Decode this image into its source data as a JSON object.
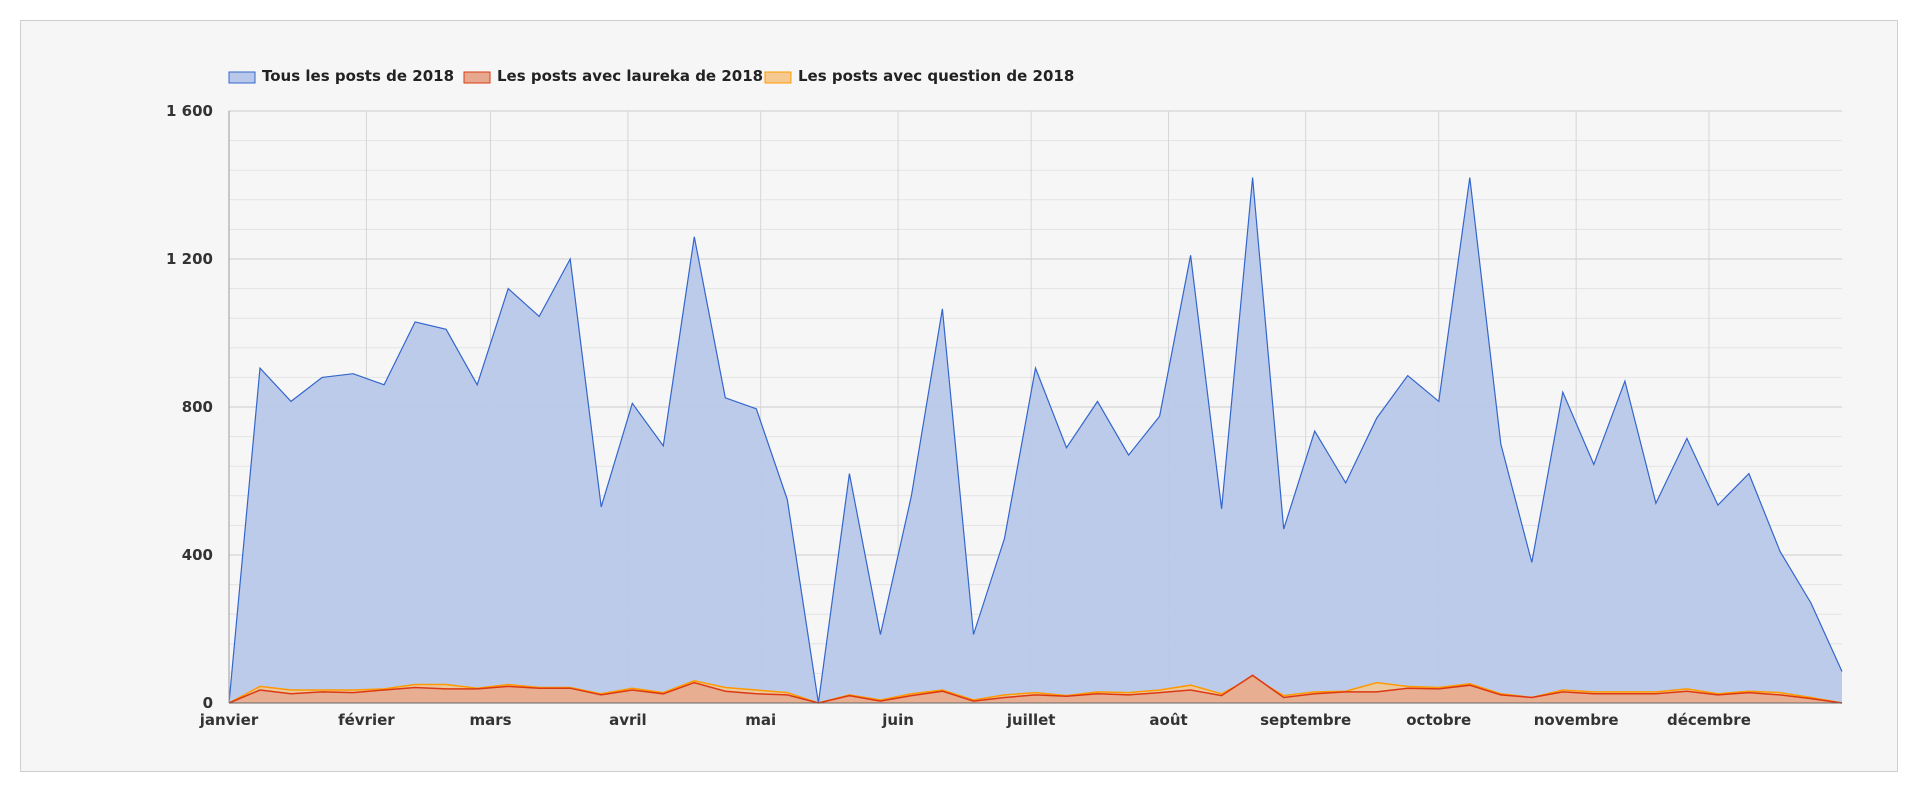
{
  "chart_data": {
    "type": "area",
    "title": "",
    "xlabel": "",
    "ylabel": "",
    "ylim": [
      0,
      1600
    ],
    "yticks": [
      0,
      400,
      800,
      1200,
      1600
    ],
    "ytick_labels": [
      "0",
      "400",
      "800",
      "1 200",
      "1 600"
    ],
    "grid": true,
    "legend_position": "top-left",
    "month_labels": [
      "janvier",
      "février",
      "mars",
      "avril",
      "mai",
      "juin",
      "juillet",
      "août",
      "septembre",
      "octobre",
      "novembre",
      "décembre"
    ],
    "month_positions": [
      0,
      4.43,
      8.43,
      12.86,
      17.14,
      21.57,
      25.86,
      30.29,
      34.71,
      39.0,
      43.43,
      47.71
    ],
    "x_min": 0,
    "x_max": 52,
    "series": [
      {
        "name": "Tous les posts de 2018",
        "color": "#3366cc",
        "fill": "#b9c8ea",
        "values": [
          0,
          905,
          815,
          880,
          890,
          860,
          1030,
          1010,
          860,
          1120,
          1045,
          1200,
          530,
          810,
          695,
          1260,
          825,
          795,
          550,
          0,
          620,
          185,
          560,
          1065,
          185,
          445,
          905,
          690,
          815,
          670,
          775,
          1210,
          525,
          1420,
          470,
          735,
          595,
          770,
          885,
          815,
          1420,
          700,
          380,
          840,
          645,
          870,
          540,
          715,
          535,
          620,
          410,
          270,
          85
        ]
      },
      {
        "name": "Les posts avec laureka de 2018",
        "color": "#dc3912",
        "fill": "#e6a98f",
        "values": [
          0,
          35,
          25,
          30,
          28,
          35,
          42,
          38,
          38,
          45,
          40,
          40,
          22,
          35,
          25,
          55,
          32,
          25,
          22,
          0,
          20,
          5,
          20,
          32,
          5,
          15,
          22,
          18,
          25,
          22,
          28,
          35,
          20,
          75,
          15,
          25,
          30,
          30,
          40,
          38,
          48,
          22,
          15,
          30,
          25,
          25,
          25,
          32,
          22,
          28,
          22,
          12,
          0
        ]
      },
      {
        "name": "Les posts avec question de 2018",
        "color": "#ff9900",
        "fill": "#f5c990",
        "values": [
          0,
          45,
          35,
          35,
          35,
          38,
          50,
          50,
          40,
          50,
          42,
          42,
          25,
          40,
          28,
          60,
          42,
          35,
          28,
          0,
          22,
          8,
          25,
          35,
          8,
          22,
          28,
          20,
          30,
          28,
          35,
          48,
          25,
          70,
          20,
          30,
          32,
          55,
          45,
          42,
          52,
          25,
          15,
          35,
          30,
          30,
          30,
          38,
          25,
          32,
          28,
          15,
          0
        ]
      }
    ]
  }
}
